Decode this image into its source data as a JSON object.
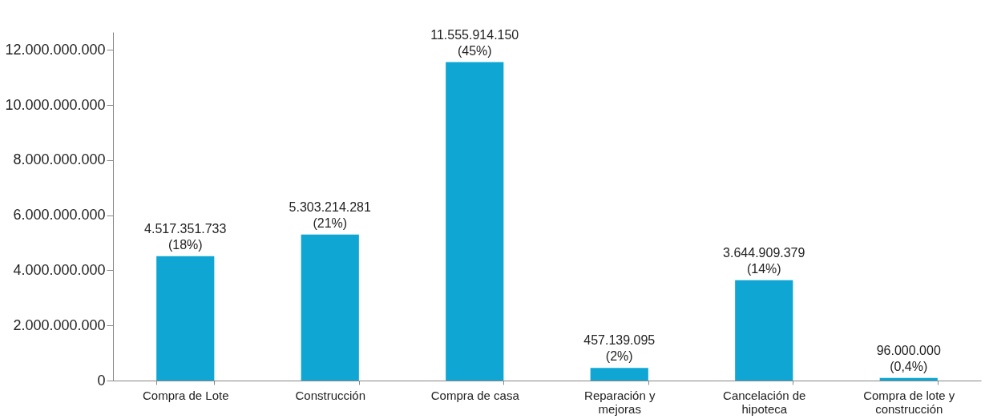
{
  "chart_data": {
    "type": "bar",
    "categories": [
      "Compra de Lote",
      "Construcción",
      "Compra de casa",
      "Reparación y mejoras",
      "Cancelación de hipoteca",
      "Compra de lote y construcción"
    ],
    "values": [
      4517351733,
      5303214281,
      11555914150,
      457139095,
      3644909379,
      96000000
    ],
    "value_labels": [
      "4.517.351.733\n(18%)",
      "5.303.214.281\n(21%)",
      "11.555.914.150\n(45%)",
      "457.139.095\n(2%)",
      "3.644.909.379\n(14%)",
      "96.000.000\n(0,4%)"
    ],
    "color": "#0fa6d4",
    "ylim": [
      0,
      12650000000
    ],
    "yticks": [
      {
        "value": 0,
        "label": "0"
      },
      {
        "value": 2000000000,
        "label": "2.000.000.000"
      },
      {
        "value": 4000000000,
        "label": "4.000.000.000"
      },
      {
        "value": 6000000000,
        "label": "6.000.000.000"
      },
      {
        "value": 8000000000,
        "label": "8.000.000.000"
      },
      {
        "value": 10000000000,
        "label": "10.000.000.000"
      },
      {
        "value": 12000000000,
        "label": "12.000.000.000"
      }
    ],
    "grid": false
  }
}
